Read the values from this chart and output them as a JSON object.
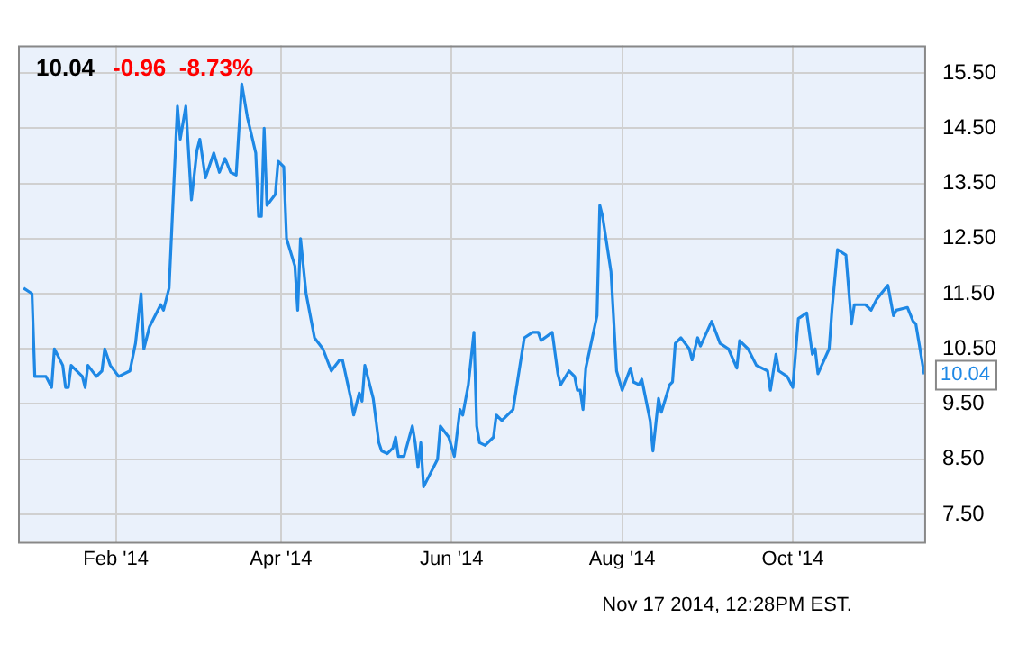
{
  "chart_data": {
    "type": "line",
    "title": "10.04",
    "subtitle": "-0.96  -8.73%",
    "x": [
      "2013-12-30",
      "2014-01-02",
      "2014-01-03",
      "2014-01-07",
      "2014-01-09",
      "2014-01-10",
      "2014-01-13",
      "2014-01-14",
      "2014-01-15",
      "2014-01-16",
      "2014-01-20",
      "2014-01-21",
      "2014-01-22",
      "2014-01-25",
      "2014-01-27",
      "2014-01-28",
      "2014-01-30",
      "2014-02-02",
      "2014-02-06",
      "2014-02-08",
      "2014-02-10",
      "2014-02-11",
      "2014-02-13",
      "2014-02-17",
      "2014-02-18",
      "2014-02-20",
      "2014-02-22",
      "2014-02-23",
      "2014-02-24",
      "2014-02-26",
      "2014-02-28",
      "2014-03-02",
      "2014-03-03",
      "2014-03-05",
      "2014-03-08",
      "2014-03-10",
      "2014-03-12",
      "2014-03-14",
      "2014-03-16",
      "2014-03-18",
      "2014-03-20",
      "2014-03-23",
      "2014-03-24",
      "2014-03-25",
      "2014-03-26",
      "2014-03-27",
      "2014-03-30",
      "2014-03-31",
      "2014-04-02",
      "2014-04-03",
      "2014-04-06",
      "2014-04-07",
      "2014-04-08",
      "2014-04-10",
      "2014-04-13",
      "2014-04-16",
      "2014-04-19",
      "2014-04-22",
      "2014-04-23",
      "2014-04-26",
      "2014-04-27",
      "2014-04-29",
      "2014-04-30",
      "2014-05-01",
      "2014-05-04",
      "2014-05-06",
      "2014-05-07",
      "2014-05-09",
      "2014-05-11",
      "2014-05-12",
      "2014-05-13",
      "2014-05-15",
      "2014-05-18",
      "2014-05-19",
      "2014-05-20",
      "2014-05-21",
      "2014-05-22",
      "2014-05-27",
      "2014-05-28",
      "2014-05-31",
      "2014-06-02",
      "2014-06-04",
      "2014-06-05",
      "2014-06-07",
      "2014-06-09",
      "2014-06-10",
      "2014-06-11",
      "2014-06-13",
      "2014-06-16",
      "2014-06-17",
      "2014-06-19",
      "2014-06-23",
      "2014-06-27",
      "2014-06-30",
      "2014-07-02",
      "2014-07-03",
      "2014-07-07",
      "2014-07-09",
      "2014-07-10",
      "2014-07-13",
      "2014-07-15",
      "2014-07-16",
      "2014-07-17",
      "2014-07-18",
      "2014-07-19",
      "2014-07-23",
      "2014-07-24",
      "2014-07-25",
      "2014-07-28",
      "2014-07-30",
      "2014-08-01",
      "2014-08-04",
      "2014-08-05",
      "2014-08-07",
      "2014-08-08",
      "2014-08-11",
      "2014-08-12",
      "2014-08-14",
      "2014-08-15",
      "2014-08-18",
      "2014-08-19",
      "2014-08-20",
      "2014-08-22",
      "2014-08-25",
      "2014-08-26",
      "2014-08-28",
      "2014-08-29",
      "2014-09-02",
      "2014-09-05",
      "2014-09-08",
      "2014-09-11",
      "2014-09-12",
      "2014-09-15",
      "2014-09-18",
      "2014-09-22",
      "2014-09-23",
      "2014-09-25",
      "2014-09-26",
      "2014-09-29",
      "2014-10-01",
      "2014-10-03",
      "2014-10-06",
      "2014-10-08",
      "2014-10-09",
      "2014-10-10",
      "2014-10-14",
      "2014-10-15",
      "2014-10-17",
      "2014-10-20",
      "2014-10-22",
      "2014-10-23",
      "2014-10-27",
      "2014-10-29",
      "2014-10-31",
      "2014-11-04",
      "2014-11-06",
      "2014-11-07",
      "2014-11-11",
      "2014-11-13",
      "2014-11-14",
      "2014-11-17"
    ],
    "series": [
      {
        "color": "#1e88e5",
        "values": [
          11.6,
          11.5,
          10.0,
          10.0,
          9.8,
          10.5,
          10.2,
          9.8,
          9.8,
          10.2,
          10.0,
          9.8,
          10.2,
          10.0,
          10.1,
          10.5,
          10.2,
          10.0,
          10.1,
          10.6,
          11.5,
          10.5,
          10.9,
          11.3,
          11.2,
          11.6,
          13.8,
          14.9,
          14.3,
          14.9,
          13.2,
          14.1,
          14.3,
          13.6,
          14.05,
          13.7,
          13.95,
          13.7,
          13.65,
          15.3,
          14.7,
          14.05,
          12.9,
          12.9,
          14.5,
          13.1,
          13.3,
          13.9,
          13.8,
          12.5,
          12.0,
          11.2,
          12.5,
          11.5,
          10.7,
          10.5,
          10.1,
          10.3,
          10.3,
          9.6,
          9.3,
          9.7,
          9.55,
          10.2,
          9.6,
          8.8,
          8.65,
          8.6,
          8.7,
          8.9,
          8.55,
          8.55,
          9.1,
          8.8,
          8.35,
          8.8,
          8.0,
          8.5,
          9.1,
          8.9,
          8.55,
          9.4,
          9.3,
          9.85,
          10.8,
          9.1,
          8.8,
          8.75,
          8.9,
          9.3,
          9.2,
          9.4,
          10.7,
          10.8,
          10.8,
          10.65,
          10.8,
          10.05,
          9.85,
          10.1,
          10.0,
          9.75,
          9.75,
          9.4,
          10.15,
          11.1,
          13.1,
          12.9,
          11.9,
          10.1,
          9.75,
          10.15,
          9.9,
          9.85,
          9.95,
          9.2,
          8.65,
          9.6,
          9.35,
          9.85,
          9.9,
          10.6,
          10.7,
          10.5,
          10.3,
          10.7,
          10.55,
          11.0,
          10.6,
          10.5,
          10.15,
          10.65,
          10.5,
          10.2,
          10.1,
          9.75,
          10.4,
          10.1,
          10.0,
          9.8,
          11.05,
          11.15,
          10.4,
          10.5,
          10.05,
          10.5,
          11.2,
          12.3,
          12.2,
          10.95,
          11.3,
          11.3,
          11.2,
          11.4,
          11.65,
          11.1,
          11.2,
          11.25,
          11.0,
          10.95,
          10.04
        ]
      }
    ],
    "xlim": [
      "2013-12-28",
      "2014-11-17"
    ],
    "xticks": [
      {
        "value": "2014-02-01",
        "label": "Feb '14"
      },
      {
        "value": "2014-04-01",
        "label": "Apr '14"
      },
      {
        "value": "2014-06-01",
        "label": "Jun '14"
      },
      {
        "value": "2014-08-01",
        "label": "Aug '14"
      },
      {
        "value": "2014-10-01",
        "label": "Oct '14"
      }
    ],
    "ylim": [
      7,
      16
    ],
    "yticks": [
      {
        "value": 7.5,
        "label": "7.50"
      },
      {
        "value": 8.5,
        "label": "8.50"
      },
      {
        "value": 9.5,
        "label": "9.50"
      },
      {
        "value": 10.5,
        "label": "10.50"
      },
      {
        "value": 11.5,
        "label": "11.50"
      },
      {
        "value": 12.5,
        "label": "12.50"
      },
      {
        "value": 13.5,
        "label": "13.50"
      },
      {
        "value": 14.5,
        "label": "14.50"
      },
      {
        "value": 15.5,
        "label": "15.50"
      }
    ],
    "annotations": [
      {
        "text": "10.04",
        "x": "2014-11-17",
        "y": 10.04
      },
      "Nov 17 2014, 12:28PM EST."
    ],
    "grid": true,
    "legend": false,
    "marker": "none",
    "line_style": "solid"
  }
}
